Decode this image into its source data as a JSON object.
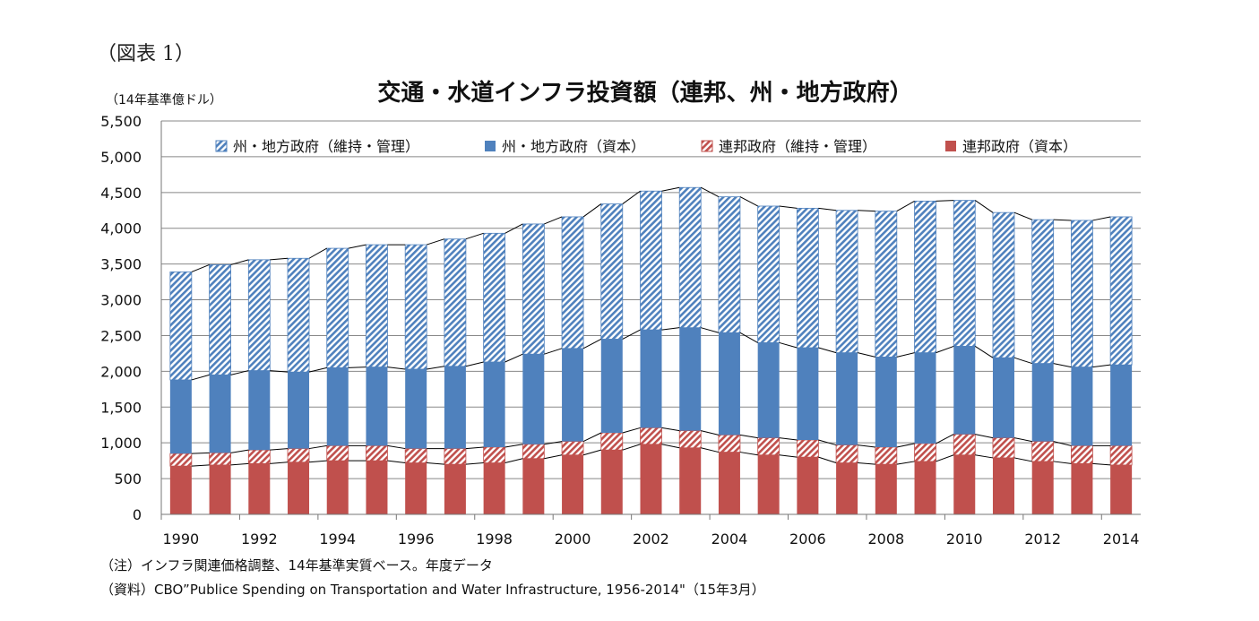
{
  "figure_label": "（図表 1）",
  "notes": [
    "（注）インフラ関連価格調整、14年基準実質ベース。年度データ",
    "（資料）CBO”Publice Spending on Transportation and   Water Infrastructure, 1956-2014\"（15年3月）"
  ],
  "chart_data": {
    "type": "bar",
    "stacked": true,
    "title": "交通・水道インフラ投資額（連邦、州・地方政府）",
    "ylabel": "（14年基準億ドル）",
    "xlabel": "",
    "ylim": [
      0,
      5500
    ],
    "yticks": [
      0,
      500,
      1000,
      1500,
      2000,
      2500,
      3000,
      3500,
      4000,
      4500,
      5000,
      5500
    ],
    "ytick_labels": [
      "0",
      "500",
      "1,000",
      "1,500",
      "2,000",
      "2,500",
      "3,000",
      "3,500",
      "4,000",
      "4,500",
      "5,000",
      "5,500"
    ],
    "grid": true,
    "legend": "top",
    "categories": [
      1990,
      1991,
      1992,
      1993,
      1994,
      1995,
      1996,
      1997,
      1998,
      1999,
      2000,
      2001,
      2002,
      2003,
      2004,
      2005,
      2006,
      2007,
      2008,
      2009,
      2010,
      2011,
      2012,
      2013,
      2014
    ],
    "xtick_labels": [
      "1990",
      "1992",
      "1994",
      "1996",
      "1998",
      "2000",
      "2002",
      "2004",
      "2006",
      "2008",
      "2010",
      "2012",
      "2014"
    ],
    "series": [
      {
        "name": "連邦政府（資本）",
        "color": "#c0504d",
        "hatched": false,
        "values": [
          675,
          690,
          710,
          730,
          750,
          750,
          720,
          700,
          720,
          780,
          830,
          900,
          980,
          930,
          870,
          830,
          800,
          720,
          700,
          740,
          830,
          790,
          740,
          710,
          690
        ]
      },
      {
        "name": "連邦政府（維持・管理）",
        "color": "#c0504d",
        "hatched": true,
        "values": [
          175,
          170,
          190,
          190,
          210,
          210,
          200,
          220,
          220,
          200,
          190,
          240,
          230,
          240,
          240,
          240,
          240,
          250,
          240,
          250,
          290,
          280,
          280,
          250,
          270
        ]
      },
      {
        "name": "州・地方政府（資本）",
        "color": "#4f81bd",
        "hatched": false,
        "values": [
          1030,
          1090,
          1110,
          1070,
          1090,
          1100,
          1110,
          1150,
          1190,
          1260,
          1300,
          1310,
          1370,
          1440,
          1430,
          1330,
          1290,
          1290,
          1260,
          1270,
          1230,
          1120,
          1090,
          1100,
          1130
        ]
      },
      {
        "name": "州・地方政府（維持・管理）",
        "color": "#4f81bd",
        "hatched": true,
        "values": [
          1510,
          1540,
          1550,
          1590,
          1670,
          1710,
          1740,
          1780,
          1800,
          1820,
          1840,
          1890,
          1940,
          1960,
          1900,
          1910,
          1950,
          1990,
          2040,
          2120,
          2040,
          2030,
          2010,
          2050,
          2070
        ]
      }
    ],
    "legend_order": [
      3,
      2,
      1,
      0
    ]
  }
}
